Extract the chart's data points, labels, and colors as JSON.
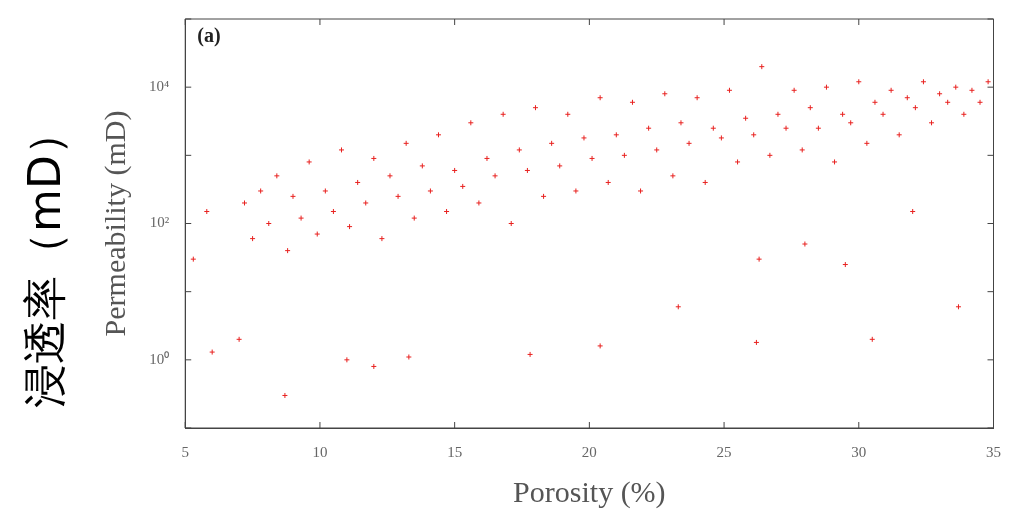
{
  "chart_data": {
    "type": "scatter",
    "xlabel": "Porosity (%)",
    "ylabel": "Permeability (mD)",
    "annotations": [
      "(a)",
      "浸透率（mD）"
    ],
    "log": "y",
    "grid": false,
    "legend": false,
    "marker": "cross",
    "xlim": [
      5,
      35
    ],
    "xticks": [
      5,
      10,
      15,
      20,
      25,
      30,
      35
    ],
    "ylim": [
      0.1,
      100000
    ],
    "yticks": [
      {
        "value": 0.1,
        "label": null
      },
      {
        "value": 1,
        "label": "10⁰"
      },
      {
        "value": 10,
        "label": null
      },
      {
        "value": 100,
        "label": "10²"
      },
      {
        "value": 1000,
        "label": null
      },
      {
        "value": 10000,
        "label": "10⁴"
      },
      {
        "value": 100000,
        "label": null
      }
    ],
    "series": [
      {
        "color": "#e8211f",
        "x": [
          7.2,
          7.5,
          7.8,
          8.1,
          8.4,
          8.8,
          9.0,
          9.3,
          9.6,
          9.9,
          10.2,
          10.5,
          10.8,
          11.1,
          11.4,
          11.7,
          12.0,
          12.3,
          12.6,
          12.9,
          13.2,
          13.5,
          13.8,
          14.1,
          14.4,
          14.7,
          15.0,
          15.3,
          15.6,
          15.9,
          16.2,
          16.5,
          16.8,
          17.1,
          17.4,
          17.7,
          18.0,
          18.3,
          18.6,
          18.9,
          19.2,
          19.5,
          19.8,
          20.1,
          20.4,
          20.7,
          21.0,
          21.3,
          21.6,
          21.9,
          22.2,
          22.5,
          22.8,
          23.1,
          23.4,
          23.7,
          24.0,
          24.3,
          24.6,
          24.9,
          25.2,
          25.5,
          25.8,
          26.1,
          26.4,
          26.7,
          27.0,
          27.3,
          27.6,
          27.9,
          28.2,
          28.5,
          28.8,
          29.1,
          29.4,
          29.7,
          30.0,
          30.3,
          30.6,
          30.9,
          31.2,
          31.5,
          31.8,
          32.1,
          32.4,
          32.7,
          33.0,
          33.3,
          33.6,
          33.9,
          34.2,
          34.5,
          34.8,
          8.7,
          12.0,
          11.0,
          13.3,
          17.8,
          20.4,
          26.2,
          30.5,
          7.0,
          6.0,
          5.3,
          5.8,
          33.7,
          23.3,
          32.0,
          29.5,
          26.3,
          28.0
        ],
        "values": [
          200,
          60,
          300,
          100,
          500,
          40,
          250,
          120,
          800,
          70,
          300,
          150,
          1200,
          90,
          400,
          200,
          900,
          60,
          500,
          250,
          1500,
          120,
          700,
          300,
          2000,
          150,
          600,
          350,
          3000,
          200,
          900,
          500,
          4000,
          100,
          1200,
          600,
          5000,
          250,
          1500,
          700,
          4000,
          300,
          1800,
          900,
          7000,
          400,
          2000,
          1000,
          6000,
          300,
          2500,
          1200,
          8000,
          500,
          3000,
          1500,
          7000,
          400,
          2500,
          1800,
          9000,
          800,
          3500,
          2000,
          20000,
          1000,
          4000,
          2500,
          9000,
          1200,
          5000,
          2500,
          10000,
          800,
          4000,
          3000,
          12000,
          1500,
          6000,
          4000,
          9000,
          2000,
          7000,
          5000,
          12000,
          3000,
          8000,
          6000,
          10000,
          4000,
          9000,
          6000,
          12000,
          0.3,
          0.8,
          1.0,
          1.1,
          1.2,
          1.6,
          1.8,
          2,
          2,
          1.3,
          30,
          150,
          6,
          6,
          150,
          25,
          30,
          50
        ]
      }
    ]
  }
}
